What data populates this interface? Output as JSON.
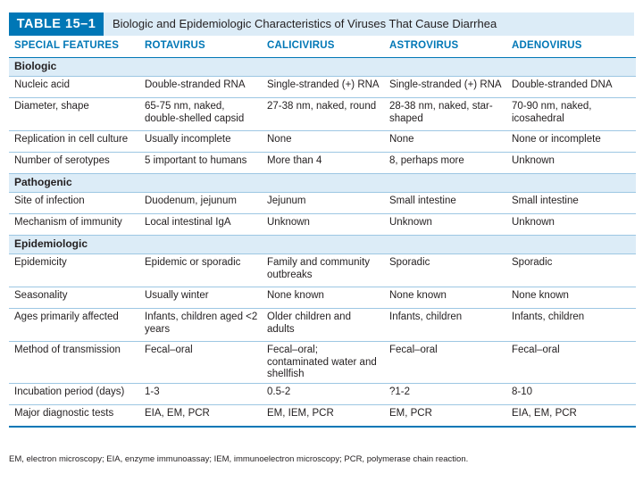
{
  "title": {
    "label": "TABLE 15–1",
    "text": "Biologic and Epidemiologic Characteristics of Viruses That Cause Diarrhea"
  },
  "columns": [
    "SPECIAL FEATURES",
    "ROTAVIRUS",
    "CALICIVIRUS",
    "ASTROVIRUS",
    "ADENOVIRUS"
  ],
  "sections": [
    {
      "name": "Biologic",
      "rows": [
        [
          "Nucleic acid",
          "Double-stranded RNA",
          "Single-stranded (+) RNA",
          "Single-stranded (+) RNA",
          "Double-stranded DNA"
        ],
        [
          "Diameter, shape",
          "65-75 nm, naked, double-shelled capsid",
          "27-38 nm, naked, round",
          "28-38 nm, naked, star-shaped",
          "70-90 nm, naked, icosahedral"
        ],
        [
          "Replication in cell culture",
          "Usually incomplete",
          "None",
          "None",
          "None or incomplete"
        ],
        [
          "Number of serotypes",
          "5 important to humans",
          "More than 4",
          "8, perhaps more",
          "Unknown"
        ]
      ]
    },
    {
      "name": "Pathogenic",
      "rows": [
        [
          "Site of infection",
          "Duodenum, jejunum",
          "Jejunum",
          "Small intestine",
          "Small intestine"
        ],
        [
          "Mechanism of immunity",
          "Local intestinal IgA",
          "Unknown",
          "Unknown",
          "Unknown"
        ]
      ]
    },
    {
      "name": "Epidemiologic",
      "rows": [
        [
          "Epidemicity",
          "Epidemic or sporadic",
          "Family and community outbreaks",
          "Sporadic",
          "Sporadic"
        ],
        [
          "Seasonality",
          "Usually winter",
          "None known",
          "None known",
          "None known"
        ],
        [
          "Ages primarily affected",
          "Infants, children aged <2 years",
          "Older children and adults",
          "Infants, children",
          "Infants, children"
        ],
        [
          "Method of transmission",
          "Fecal–oral",
          "Fecal–oral; contaminated water and shellfish",
          "Fecal–oral",
          "Fecal–oral"
        ],
        [
          "Incubation period (days)",
          "1-3",
          "0.5-2",
          "?1-2",
          "8-10"
        ],
        [
          "Major diagnostic tests",
          "EIA, EM, PCR",
          "EM, IEM, PCR",
          "EM, PCR",
          "EIA, EM, PCR"
        ]
      ]
    }
  ],
  "footnote": "EM, electron microscopy; EIA, enzyme immunoassay; IEM, immunoelectron microscopy; PCR, polymerase chain reaction.",
  "colors": {
    "accent": "#0077b6",
    "band": "#dcecf7",
    "rule": "#9dc7e3"
  }
}
